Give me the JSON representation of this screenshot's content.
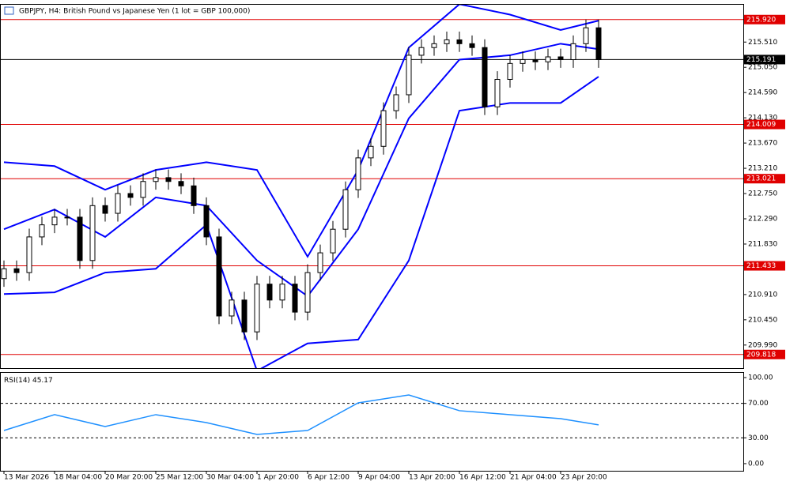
{
  "chart_data": {
    "type": "candlestick",
    "title": "GBPJPY, H4:  British Pound vs Japanese Yen (1 lot = GBP 100,000)",
    "categories": [
      "13 Mar 2026",
      null,
      null,
      null,
      "18 Mar 04:00",
      null,
      null,
      null,
      "20 Mar 20:00",
      null,
      null,
      null,
      "25 Mar 12:00",
      null,
      null,
      null,
      "30 Mar 04:00",
      null,
      null,
      null,
      "1 Apr 20:00",
      null,
      null,
      null,
      "6 Apr 12:00",
      null,
      null,
      null,
      "9 Apr 04:00",
      null,
      null,
      null,
      "13 Apr 20:00",
      null,
      null,
      null,
      "16 Apr 12:00",
      null,
      null,
      null,
      "21 Apr 04:00",
      null,
      null,
      null,
      "23 Apr 20:00",
      null,
      null,
      null
    ],
    "open": [
      211.2,
      211.38,
      211.31,
      211.96,
      212.18,
      212.32,
      212.32,
      211.53,
      212.53,
      212.39,
      212.75,
      212.68,
      212.97,
      213.04,
      212.97,
      212.89,
      212.53,
      211.96,
      210.52,
      210.81,
      210.23,
      211.1,
      210.81,
      211.1,
      210.59,
      211.31,
      211.67,
      212.1,
      212.82,
      213.4,
      213.61,
      214.26,
      214.55,
      215.27,
      215.41,
      215.48,
      215.55,
      215.48,
      215.41,
      214.33,
      214.83,
      215.12,
      215.19,
      215.15,
      215.24,
      215.19,
      215.48,
      215.77
    ],
    "high": [
      211.53,
      211.53,
      212.11,
      212.33,
      212.47,
      212.47,
      212.47,
      212.68,
      212.68,
      212.9,
      212.9,
      213.12,
      213.19,
      213.19,
      213.12,
      213.04,
      212.68,
      212.11,
      210.96,
      210.96,
      211.25,
      211.25,
      211.25,
      211.25,
      211.46,
      211.82,
      212.25,
      212.97,
      213.55,
      213.76,
      214.41,
      214.7,
      215.42,
      215.56,
      215.63,
      215.7,
      215.7,
      215.63,
      215.56,
      214.98,
      215.27,
      215.34,
      215.34,
      215.39,
      215.39,
      215.63,
      215.92,
      215.92
    ],
    "low": [
      211.05,
      211.16,
      211.16,
      211.81,
      212.03,
      212.17,
      211.38,
      211.38,
      212.24,
      212.24,
      212.53,
      212.53,
      212.82,
      212.82,
      212.74,
      212.38,
      211.81,
      210.37,
      210.37,
      210.08,
      210.08,
      210.66,
      210.66,
      210.44,
      210.44,
      211.16,
      211.52,
      211.95,
      212.67,
      213.25,
      213.46,
      214.11,
      214.4,
      215.12,
      215.26,
      215.33,
      215.33,
      215.26,
      214.18,
      214.18,
      214.68,
      214.97,
      215.0,
      215.0,
      215.04,
      215.04,
      215.33,
      215.04
    ],
    "close": [
      211.38,
      211.31,
      211.96,
      212.18,
      212.32,
      212.32,
      211.53,
      212.53,
      212.39,
      212.75,
      212.68,
      212.97,
      213.04,
      212.97,
      212.89,
      212.53,
      211.96,
      210.52,
      210.81,
      210.23,
      211.1,
      210.81,
      211.1,
      210.59,
      211.31,
      211.67,
      212.1,
      212.82,
      213.4,
      213.61,
      214.26,
      214.55,
      215.27,
      215.41,
      215.48,
      215.55,
      215.48,
      215.41,
      214.33,
      214.83,
      215.12,
      215.19,
      215.15,
      215.24,
      215.19,
      215.48,
      215.77,
      215.19
    ],
    "bands_x": [
      0,
      4,
      8,
      12,
      16,
      20,
      24,
      28,
      32,
      36,
      40,
      44,
      47
    ],
    "bands": [
      {
        "color": "#0000ff",
        "values": [
          213.32,
          213.25,
          212.82,
          213.18,
          213.32,
          213.18,
          211.6,
          213.18,
          215.41,
          216.2,
          216.01,
          215.73,
          215.9
        ]
      },
      {
        "color": "#0000ff",
        "values": [
          212.1,
          212.46,
          211.96,
          212.68,
          212.53,
          211.53,
          210.88,
          212.1,
          214.12,
          215.19,
          215.27,
          215.48,
          215.38
        ]
      },
      {
        "color": "#0000ff",
        "values": [
          210.92,
          210.95,
          211.31,
          211.38,
          212.18,
          209.52,
          210.02,
          210.09,
          211.53,
          214.26,
          214.4,
          214.4,
          214.88
        ]
      }
    ],
    "ylim": [
      209.57,
      216.19
    ],
    "yticks": [
      {
        "value": 215.51,
        "label": "215.510"
      },
      {
        "value": 215.05,
        "label": "215.050"
      },
      {
        "value": 214.59,
        "label": "214.590"
      },
      {
        "value": 214.13,
        "label": "214.130"
      },
      {
        "value": 213.67,
        "label": "213.670"
      },
      {
        "value": 213.21,
        "label": "213.210"
      },
      {
        "value": 212.75,
        "label": "212.750"
      },
      {
        "value": 212.29,
        "label": "212.290"
      },
      {
        "value": 211.83,
        "label": "211.830"
      },
      {
        "value": 210.91,
        "label": "210.910"
      },
      {
        "value": 210.45,
        "label": "210.450"
      },
      {
        "value": 209.99,
        "label": "209.990"
      }
    ],
    "levels": [
      {
        "value": 215.92,
        "label": "215.920"
      },
      {
        "value": 214.009,
        "label": "214.009"
      },
      {
        "value": 213.021,
        "label": "213.021"
      },
      {
        "value": 211.433,
        "label": "211.433"
      },
      {
        "value": 209.818,
        "label": "209.818"
      }
    ],
    "level_color": "#e00000",
    "current_price": {
      "value": 215.191,
      "label": "215.191"
    },
    "rsi": {
      "name": "RSI(14)",
      "last": 45.17,
      "color": "#1e90ff",
      "values": [
        38.5,
        56.9,
        43.1,
        56.9,
        47.7,
        33.9,
        38.5,
        70.6,
        79.8,
        61.5,
        56.9,
        52.3,
        45.0
      ],
      "ylim": [
        -8.3,
        105.5
      ],
      "yticks": [
        {
          "value": 100,
          "label": "100.00"
        },
        {
          "value": 70,
          "label": "70.00"
        },
        {
          "value": 30,
          "label": "30.00"
        },
        {
          "value": 0,
          "label": "0.00"
        }
      ],
      "levels": [
        70,
        30
      ]
    }
  }
}
